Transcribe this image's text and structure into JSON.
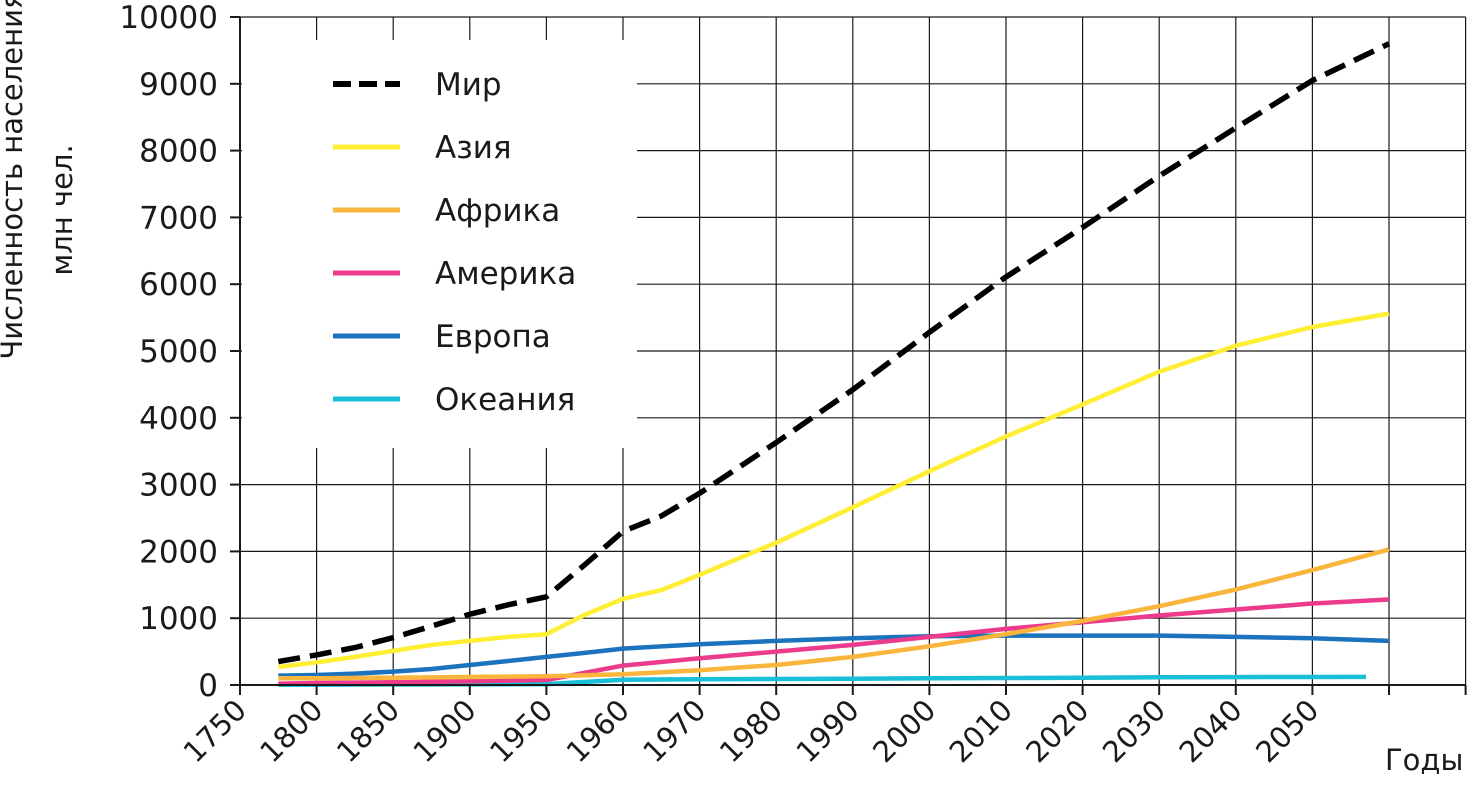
{
  "chart_data": {
    "type": "line",
    "title": "",
    "ylabel": "Численность населения, млн чел.",
    "ylabel_lines": [
      "Численность населения,",
      "млн чел."
    ],
    "xlabel": "Годы",
    "ylim": [
      0,
      10000
    ],
    "yticks": [
      0,
      1000,
      2000,
      3000,
      4000,
      5000,
      6000,
      7000,
      8000,
      9000,
      10000
    ],
    "categories": [
      "1750",
      "1800",
      "1850",
      "1900",
      "1950",
      "1960",
      "1970",
      "1980",
      "1990",
      "2000",
      "2010",
      "2020",
      "2030",
      "2040",
      "2050"
    ],
    "grid": true,
    "legend_position": "top-left",
    "series": [
      {
        "name": "Мир",
        "color": "#000000",
        "dashed": true,
        "points": [
          [
            0.5,
            350
          ],
          [
            1.0,
            450
          ],
          [
            1.5,
            560
          ],
          [
            2.0,
            710
          ],
          [
            2.5,
            880
          ],
          [
            3.0,
            1060
          ],
          [
            3.5,
            1200
          ],
          [
            4.0,
            1320
          ],
          [
            4.5,
            1800
          ],
          [
            5.0,
            2300
          ],
          [
            5.5,
            2530
          ],
          [
            6.0,
            2870
          ],
          [
            7.0,
            3630
          ],
          [
            8.0,
            4420
          ],
          [
            9.0,
            5280
          ],
          [
            10.0,
            6110
          ],
          [
            11.0,
            6850
          ],
          [
            12.0,
            7620
          ],
          [
            13.0,
            8340
          ],
          [
            14.0,
            9050
          ],
          [
            15.0,
            9600
          ]
        ]
      },
      {
        "name": "Азия",
        "color": "#ffee33",
        "dashed": false,
        "points": [
          [
            0.5,
            270
          ],
          [
            1.0,
            340
          ],
          [
            1.5,
            420
          ],
          [
            2.0,
            510
          ],
          [
            2.5,
            600
          ],
          [
            3.0,
            660
          ],
          [
            3.5,
            720
          ],
          [
            4.0,
            760
          ],
          [
            4.5,
            1050
          ],
          [
            5.0,
            1290
          ],
          [
            5.5,
            1420
          ],
          [
            6.0,
            1650
          ],
          [
            7.0,
            2130
          ],
          [
            8.0,
            2660
          ],
          [
            9.0,
            3200
          ],
          [
            10.0,
            3720
          ],
          [
            11.0,
            4200
          ],
          [
            12.0,
            4690
          ],
          [
            13.0,
            5080
          ],
          [
            14.0,
            5360
          ],
          [
            15.0,
            5560
          ]
        ]
      },
      {
        "name": "Африка",
        "color": "#f9b53c",
        "dashed": false,
        "points": [
          [
            0.5,
            100
          ],
          [
            1.0,
            100
          ],
          [
            2.0,
            110
          ],
          [
            3.0,
            120
          ],
          [
            4.0,
            130
          ],
          [
            5.0,
            160
          ],
          [
            6.0,
            220
          ],
          [
            7.0,
            300
          ],
          [
            8.0,
            420
          ],
          [
            9.0,
            580
          ],
          [
            10.0,
            760
          ],
          [
            11.0,
            960
          ],
          [
            12.0,
            1180
          ],
          [
            13.0,
            1430
          ],
          [
            14.0,
            1720
          ],
          [
            15.0,
            2030
          ]
        ]
      },
      {
        "name": "Америка",
        "color": "#ec3b8c",
        "dashed": false,
        "points": [
          [
            0.5,
            20
          ],
          [
            1.0,
            30
          ],
          [
            2.0,
            40
          ],
          [
            3.0,
            55
          ],
          [
            4.0,
            75
          ],
          [
            5.0,
            290
          ],
          [
            6.0,
            400
          ],
          [
            7.0,
            500
          ],
          [
            8.0,
            600
          ],
          [
            9.0,
            720
          ],
          [
            10.0,
            840
          ],
          [
            11.0,
            940
          ],
          [
            12.0,
            1040
          ],
          [
            13.0,
            1130
          ],
          [
            14.0,
            1220
          ],
          [
            15.0,
            1280
          ]
        ]
      },
      {
        "name": "Европа",
        "color": "#1a73bc",
        "dashed": false,
        "points": [
          [
            0.5,
            140
          ],
          [
            1.0,
            150
          ],
          [
            1.5,
            170
          ],
          [
            2.0,
            200
          ],
          [
            2.5,
            240
          ],
          [
            3.0,
            300
          ],
          [
            3.5,
            360
          ],
          [
            4.0,
            420
          ],
          [
            4.5,
            480
          ],
          [
            5.0,
            545
          ],
          [
            6.0,
            610
          ],
          [
            7.0,
            660
          ],
          [
            8.0,
            700
          ],
          [
            9.0,
            730
          ],
          [
            10.0,
            740
          ],
          [
            11.0,
            740
          ],
          [
            12.0,
            740
          ],
          [
            13.0,
            720
          ],
          [
            14.0,
            700
          ],
          [
            15.0,
            660
          ]
        ]
      },
      {
        "name": "Океания",
        "color": "#18bfd6",
        "dashed": false,
        "points": [
          [
            0.5,
            5
          ],
          [
            2.0,
            8
          ],
          [
            4.0,
            13
          ],
          [
            5.0,
            80
          ],
          [
            6.0,
            85
          ],
          [
            7.0,
            90
          ],
          [
            8.0,
            95
          ],
          [
            9.0,
            100
          ],
          [
            10.0,
            105
          ],
          [
            11.0,
            110
          ],
          [
            12.0,
            115
          ],
          [
            13.0,
            118
          ],
          [
            14.0,
            120
          ],
          [
            14.7,
            122
          ]
        ]
      }
    ]
  }
}
